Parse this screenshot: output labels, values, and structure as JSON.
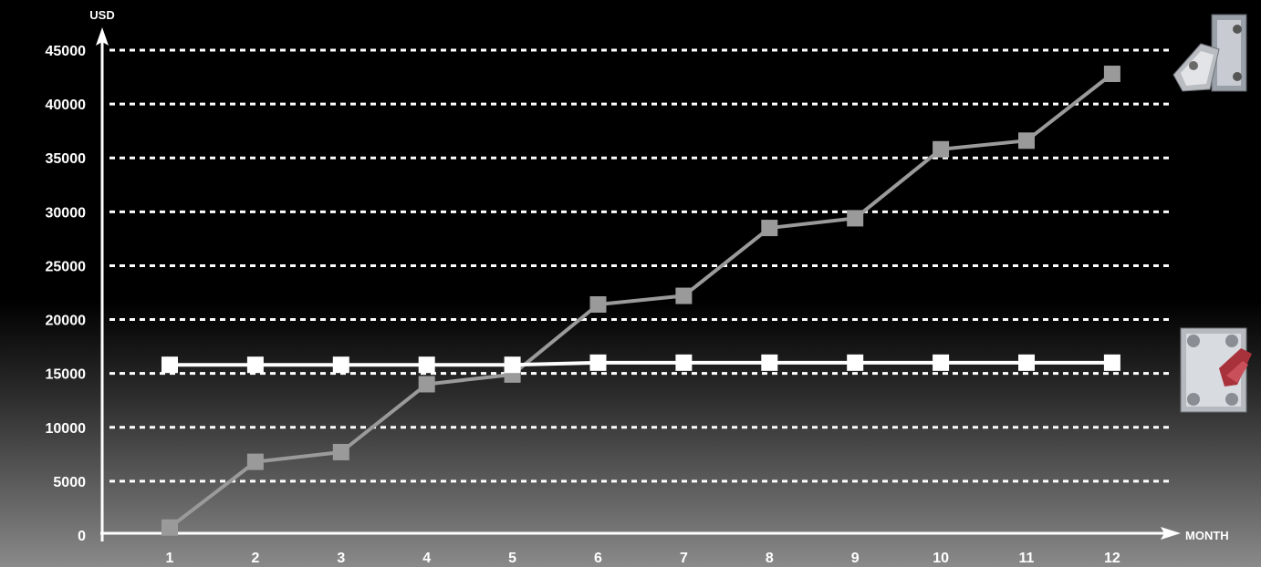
{
  "chart_data": {
    "type": "line",
    "xlabel": "MONTH",
    "ylabel": "USD",
    "categories": [
      "1",
      "2",
      "3",
      "4",
      "5",
      "6",
      "7",
      "8",
      "9",
      "10",
      "11",
      "12"
    ],
    "y_ticks": [
      0,
      5000,
      10000,
      15000,
      20000,
      25000,
      30000,
      35000,
      40000,
      45000
    ],
    "ylim": [
      0,
      45000
    ],
    "grid": true,
    "series": [
      {
        "color": "#9a9a9a",
        "values": [
          700,
          6800,
          7700,
          14000,
          14900,
          21400,
          22200,
          28500,
          29400,
          35800,
          36600,
          42800
        ]
      },
      {
        "color": "#ffffff",
        "values": [
          15800,
          15800,
          15800,
          15800,
          15800,
          16000,
          16000,
          16000,
          16000,
          16000,
          16000,
          16000
        ]
      }
    ],
    "legend_icons": [
      "gray-plate-heat-exchanger-image",
      "welded-plate-heat-exchanger-image"
    ]
  }
}
